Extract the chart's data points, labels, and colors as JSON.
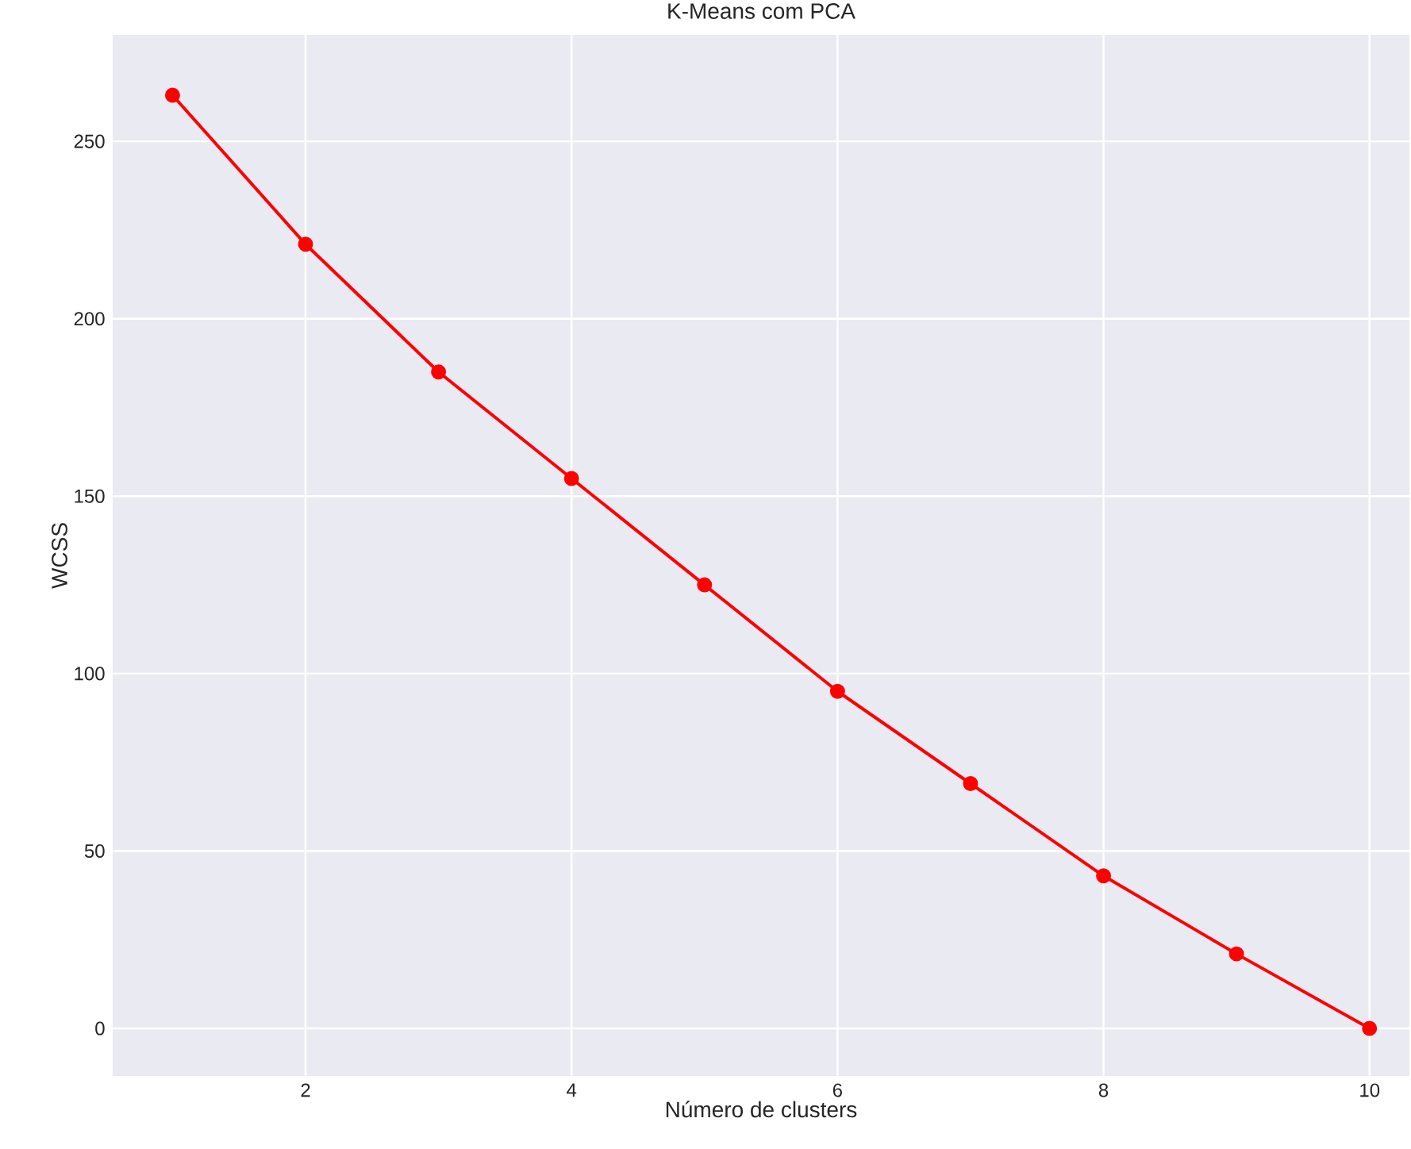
{
  "chart_data": {
    "type": "line",
    "title": "K-Means com PCA",
    "xlabel": "Número de clusters",
    "ylabel": "WCSS",
    "x": [
      1,
      2,
      3,
      4,
      5,
      6,
      7,
      8,
      9,
      10
    ],
    "values": [
      263,
      221,
      185,
      155,
      125,
      95,
      69,
      43,
      21,
      0
    ],
    "color": "#ff0000",
    "marker": "circle",
    "xlim": [
      0.55,
      10.3
    ],
    "ylim": [
      -13.4,
      280
    ],
    "xticks": [
      2,
      4,
      6,
      8,
      10
    ],
    "yticks": [
      0,
      50,
      100,
      150,
      200,
      250
    ],
    "grid": true
  }
}
